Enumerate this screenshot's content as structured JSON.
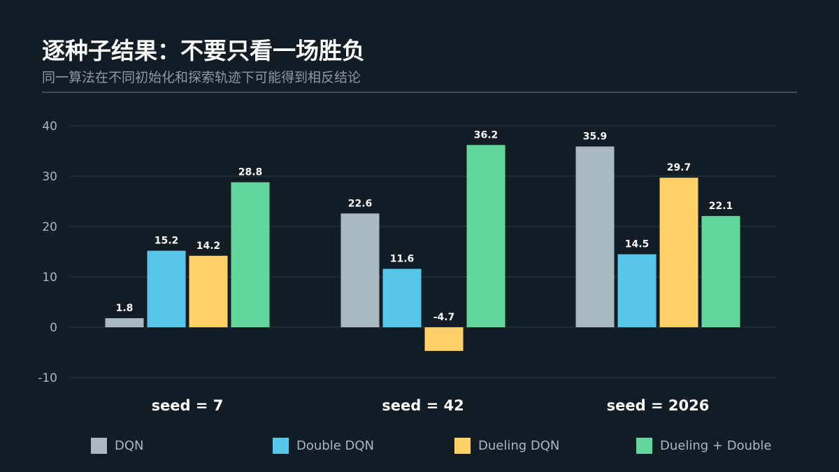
{
  "header": {
    "title": "逐种子结果：不要只看一场胜负",
    "subtitle": "同一算法在不同初始化和探索轨迹下可能得到相反结论"
  },
  "chart_data": {
    "type": "bar",
    "categories": [
      "seed = 7",
      "seed = 42",
      "seed = 2026"
    ],
    "series": [
      {
        "name": "DQN",
        "color": "#aab8c2",
        "values": [
          1.8,
          22.6,
          35.9
        ]
      },
      {
        "name": "Double DQN",
        "color": "#56c6e9",
        "values": [
          15.2,
          11.6,
          14.5
        ]
      },
      {
        "name": "Dueling DQN",
        "color": "#ffd166",
        "values": [
          14.2,
          -4.7,
          29.7
        ]
      },
      {
        "name": "Dueling + Double",
        "color": "#63d69b",
        "values": [
          28.8,
          36.2,
          22.1
        ]
      }
    ],
    "y_ticks": [
      -10,
      0,
      10,
      20,
      30,
      40
    ],
    "ylim": [
      -10,
      40
    ],
    "grid": true,
    "legend_position": "bottom",
    "data_labels": true
  }
}
